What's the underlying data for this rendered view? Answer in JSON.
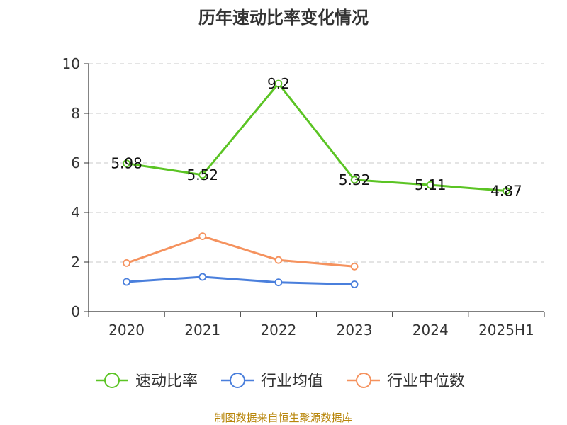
{
  "chart_data": {
    "type": "line",
    "title": "历年速动比率变化情况",
    "categories": [
      "2020",
      "2021",
      "2022",
      "2023",
      "2024",
      "2025H1"
    ],
    "y_ticks": [
      "0",
      "2",
      "4",
      "6",
      "8",
      "10"
    ],
    "ylim": [
      0,
      10
    ],
    "grid": true,
    "legend_position": "bottom",
    "series": [
      {
        "name": "速动比率",
        "color": "#5bc424",
        "values": [
          5.98,
          5.52,
          9.2,
          5.32,
          5.11,
          4.87
        ],
        "labels": [
          "5.98",
          "5.52",
          "9.2",
          "5.32",
          "5.11",
          "4.87"
        ]
      },
      {
        "name": "行业均值",
        "color": "#4a7fdc",
        "values": [
          1.2,
          1.4,
          1.18,
          1.1,
          null,
          null
        ]
      },
      {
        "name": "行业中位数",
        "color": "#f5925e",
        "values": [
          1.96,
          3.04,
          2.08,
          1.82,
          null,
          null
        ]
      }
    ]
  },
  "source": "制图数据来自恒生聚源数据库"
}
